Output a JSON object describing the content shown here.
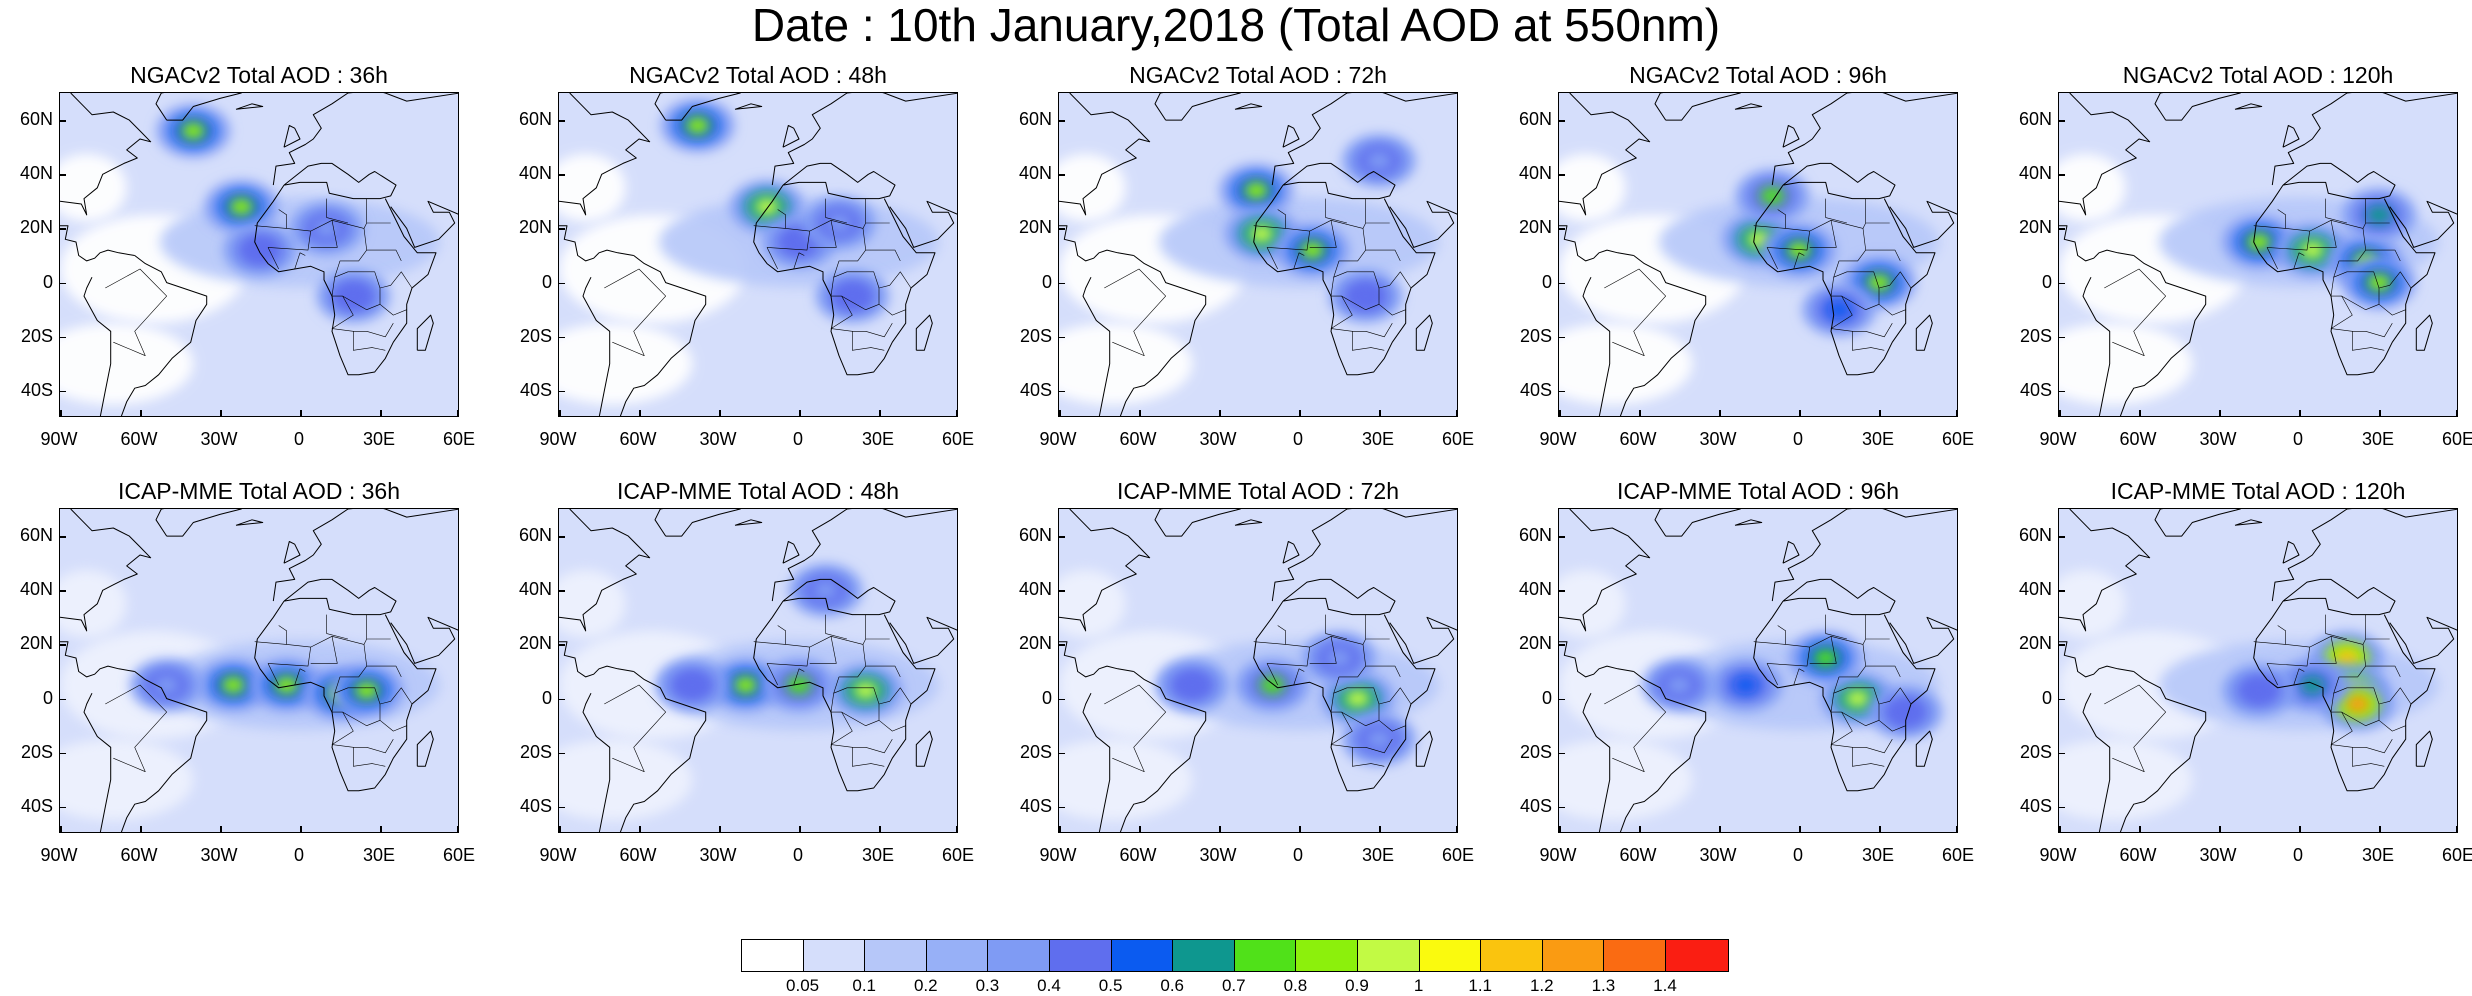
{
  "title": "Date : 10th January,2018 (Total AOD at 550nm)",
  "panels": [
    {
      "title": "NGACv2 Total AOD : 36h",
      "blobs": [
        [
          -40,
          56,
          0.85
        ],
        [
          -22,
          28,
          0.8
        ],
        [
          20,
          -5,
          0.45
        ],
        [
          -15,
          12,
          0.4
        ],
        [
          10,
          20,
          0.3
        ]
      ]
    },
    {
      "title": "NGACv2 Total AOD : 48h",
      "blobs": [
        [
          -38,
          58,
          0.85
        ],
        [
          -12,
          28,
          0.9
        ],
        [
          20,
          -5,
          0.45
        ],
        [
          0,
          15,
          0.4
        ],
        [
          15,
          22,
          0.3
        ]
      ]
    },
    {
      "title": "NGACv2 Total AOD : 72h",
      "blobs": [
        [
          -16,
          34,
          0.85
        ],
        [
          -14,
          18,
          0.9
        ],
        [
          5,
          12,
          0.8
        ],
        [
          25,
          -5,
          0.45
        ],
        [
          30,
          45,
          0.3
        ]
      ]
    },
    {
      "title": "NGACv2 Total AOD : 96h",
      "blobs": [
        [
          -15,
          16,
          0.9
        ],
        [
          0,
          12,
          0.85
        ],
        [
          30,
          0,
          0.85
        ],
        [
          15,
          -10,
          0.5
        ],
        [
          -10,
          32,
          0.7
        ]
      ]
    },
    {
      "title": "NGACv2 Total AOD : 120h",
      "blobs": [
        [
          -15,
          15,
          0.85
        ],
        [
          5,
          12,
          0.9
        ],
        [
          25,
          8,
          0.85
        ],
        [
          30,
          0,
          0.8
        ],
        [
          30,
          25,
          0.6
        ]
      ]
    },
    {
      "title": "ICAP-MME Total AOD : 36h",
      "blobs": [
        [
          -25,
          5,
          0.85
        ],
        [
          -5,
          5,
          0.85
        ],
        [
          15,
          2,
          0.85
        ],
        [
          25,
          3,
          0.8
        ],
        [
          -50,
          5,
          0.35
        ]
      ]
    },
    {
      "title": "ICAP-MME Total AOD : 48h",
      "blobs": [
        [
          -20,
          5,
          0.8
        ],
        [
          0,
          5,
          0.7
        ],
        [
          25,
          3,
          0.9
        ],
        [
          -40,
          5,
          0.45
        ],
        [
          10,
          40,
          0.3
        ]
      ]
    },
    {
      "title": "ICAP-MME Total AOD : 72h",
      "blobs": [
        [
          -10,
          5,
          0.7
        ],
        [
          22,
          0,
          0.9
        ],
        [
          -40,
          5,
          0.45
        ],
        [
          30,
          -15,
          0.35
        ],
        [
          15,
          15,
          0.35
        ]
      ]
    },
    {
      "title": "ICAP-MME Total AOD : 96h",
      "blobs": [
        [
          22,
          0,
          0.95
        ],
        [
          10,
          15,
          0.75
        ],
        [
          -20,
          5,
          0.5
        ],
        [
          -45,
          5,
          0.35
        ],
        [
          40,
          -5,
          0.4
        ]
      ]
    },
    {
      "title": "ICAP-MME Total AOD : 120h",
      "blobs": [
        [
          18,
          15,
          1.15
        ],
        [
          20,
          3,
          1.05
        ],
        [
          22,
          -2,
          1.2
        ],
        [
          5,
          5,
          0.6
        ],
        [
          -15,
          3,
          0.4
        ]
      ]
    }
  ],
  "map_extent": {
    "lon": [
      -90,
      60
    ],
    "lat": [
      -50,
      70
    ]
  },
  "lat_labels": [
    "60N",
    "40N",
    "20N",
    "0",
    "20S",
    "40S"
  ],
  "lon_labels": [
    "90W",
    "60W",
    "30W",
    "0",
    "30E",
    "60E"
  ],
  "colorbar": {
    "labels": [
      "0.05",
      "0.1",
      "0.2",
      "0.3",
      "0.4",
      "0.5",
      "0.6",
      "0.7",
      "0.8",
      "0.9",
      "1",
      "1.1",
      "1.2",
      "1.3",
      "1.4"
    ],
    "colors": [
      "#ffffff",
      "#d5defb",
      "#b6c7f9",
      "#97b0f7",
      "#7f9bf4",
      "#5f6eee",
      "#0b5bf0",
      "#0e978f",
      "#50e119",
      "#8cf00c",
      "#c2fa44",
      "#fafa0e",
      "#fac40e",
      "#fa9b12",
      "#fa6b12",
      "#fa1e12"
    ]
  }
}
